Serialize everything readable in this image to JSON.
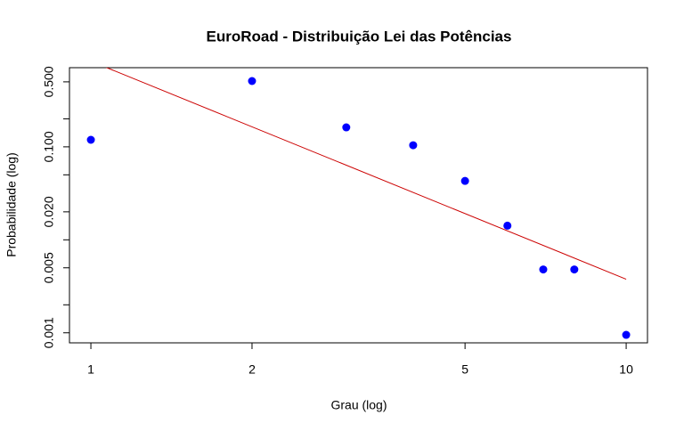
{
  "chart_data": {
    "type": "scatter",
    "title": "EuroRoad - Distribuição Lei das Potências",
    "x_label": "Grau (log)",
    "y_label": "Probabilidade (log)",
    "x_log": true,
    "y_log": true,
    "xlim": [
      0.912,
      10.96
    ],
    "ylim": [
      0.00078,
      0.71
    ],
    "xticks": [
      1,
      2,
      5,
      10
    ],
    "yticks": [
      {
        "value": 0.5,
        "label": "0.500"
      },
      {
        "value": 0.2
      },
      {
        "value": 0.1,
        "label": "0.100"
      },
      {
        "value": 0.05
      },
      {
        "value": 0.02,
        "label": "0.020"
      },
      {
        "value": 0.01
      },
      {
        "value": 0.005,
        "label": "0.005"
      },
      {
        "value": 0.002
      },
      {
        "value": 0.001,
        "label": "0.001"
      }
    ],
    "series": [
      {
        "type": "scatter",
        "color": "#0000ff",
        "x": [
          1,
          2,
          3,
          4,
          5,
          6,
          7,
          8,
          10
        ],
        "values": [
          0.119,
          0.51,
          0.162,
          0.104,
          0.043,
          0.0142,
          0.0048,
          0.0048,
          0.00095
        ]
      },
      {
        "type": "line",
        "color": "#cc0000",
        "x": [
          1,
          10
        ],
        "values": [
          0.834,
          0.00377
        ]
      }
    ]
  }
}
